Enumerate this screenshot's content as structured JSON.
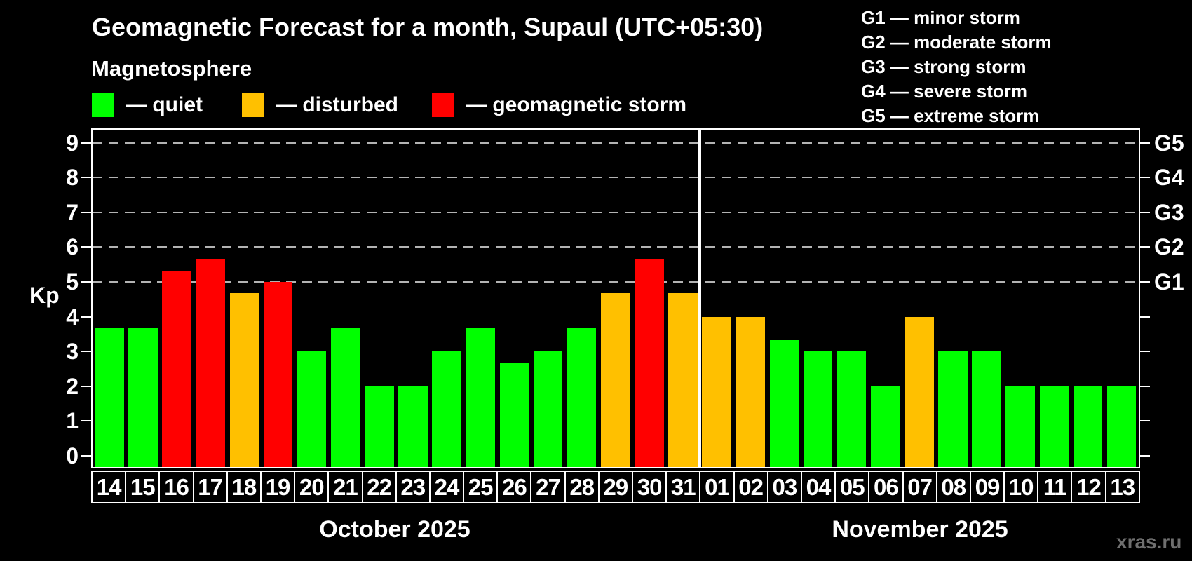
{
  "title": "Geomagnetic Forecast for a month, Supaul (UTC+05:30)",
  "subtitle": "Magnetosphere",
  "legend": [
    {
      "label": "— quiet",
      "status": "quiet",
      "color": "#00ff00"
    },
    {
      "label": "— disturbed",
      "status": "disturbed",
      "color": "#ffc000"
    },
    {
      "label": "— geomagnetic storm",
      "status": "storm",
      "color": "#ff0000"
    }
  ],
  "g_legend": [
    "G1 — minor storm",
    "G2 — moderate storm",
    "G3 — strong storm",
    "G4 — severe storm",
    "G5 — extreme storm"
  ],
  "watermark": "xras.ru",
  "chart_data": {
    "type": "bar",
    "title": "Geomagnetic Forecast for a month, Supaul (UTC+05:30)",
    "ylabel": "Kp",
    "ylim": [
      0,
      9.4
    ],
    "yticks": [
      0,
      1,
      2,
      3,
      4,
      5,
      6,
      7,
      8,
      9
    ],
    "grid_levels": [
      5,
      6,
      7,
      8,
      9
    ],
    "right_axis": [
      {
        "label": "G1",
        "kp": 5
      },
      {
        "label": "G2",
        "kp": 6
      },
      {
        "label": "G3",
        "kp": 7
      },
      {
        "label": "G4",
        "kp": 8
      },
      {
        "label": "G5",
        "kp": 9
      }
    ],
    "status_colors": {
      "quiet": "#00ff00",
      "disturbed": "#ffc000",
      "storm": "#ff0000"
    },
    "legend_position": "top",
    "grid": "dashed-on-storm-levels-only",
    "months": [
      {
        "label": "October 2025",
        "days": [
          {
            "day": "14",
            "kp": 3.67,
            "status": "quiet"
          },
          {
            "day": "15",
            "kp": 3.67,
            "status": "quiet"
          },
          {
            "day": "16",
            "kp": 5.33,
            "status": "storm"
          },
          {
            "day": "17",
            "kp": 5.67,
            "status": "storm"
          },
          {
            "day": "18",
            "kp": 4.67,
            "status": "disturbed"
          },
          {
            "day": "19",
            "kp": 5.0,
            "status": "storm"
          },
          {
            "day": "20",
            "kp": 3.0,
            "status": "quiet"
          },
          {
            "day": "21",
            "kp": 3.67,
            "status": "quiet"
          },
          {
            "day": "22",
            "kp": 2.0,
            "status": "quiet"
          },
          {
            "day": "23",
            "kp": 2.0,
            "status": "quiet"
          },
          {
            "day": "24",
            "kp": 3.0,
            "status": "quiet"
          },
          {
            "day": "25",
            "kp": 3.67,
            "status": "quiet"
          },
          {
            "day": "26",
            "kp": 2.67,
            "status": "quiet"
          },
          {
            "day": "27",
            "kp": 3.0,
            "status": "quiet"
          },
          {
            "day": "28",
            "kp": 3.67,
            "status": "quiet"
          },
          {
            "day": "29",
            "kp": 4.67,
            "status": "disturbed"
          },
          {
            "day": "30",
            "kp": 5.67,
            "status": "storm"
          },
          {
            "day": "31",
            "kp": 4.67,
            "status": "disturbed"
          }
        ]
      },
      {
        "label": "November 2025",
        "days": [
          {
            "day": "01",
            "kp": 4.0,
            "status": "disturbed"
          },
          {
            "day": "02",
            "kp": 4.0,
            "status": "disturbed"
          },
          {
            "day": "03",
            "kp": 3.33,
            "status": "quiet"
          },
          {
            "day": "04",
            "kp": 3.0,
            "status": "quiet"
          },
          {
            "day": "05",
            "kp": 3.0,
            "status": "quiet"
          },
          {
            "day": "06",
            "kp": 2.0,
            "status": "quiet"
          },
          {
            "day": "07",
            "kp": 4.0,
            "status": "disturbed"
          },
          {
            "day": "08",
            "kp": 3.0,
            "status": "quiet"
          },
          {
            "day": "09",
            "kp": 3.0,
            "status": "quiet"
          },
          {
            "day": "10",
            "kp": 2.0,
            "status": "quiet"
          },
          {
            "day": "11",
            "kp": 2.0,
            "status": "quiet"
          },
          {
            "day": "12",
            "kp": 2.0,
            "status": "quiet"
          },
          {
            "day": "13",
            "kp": 2.0,
            "status": "quiet"
          }
        ]
      }
    ]
  }
}
